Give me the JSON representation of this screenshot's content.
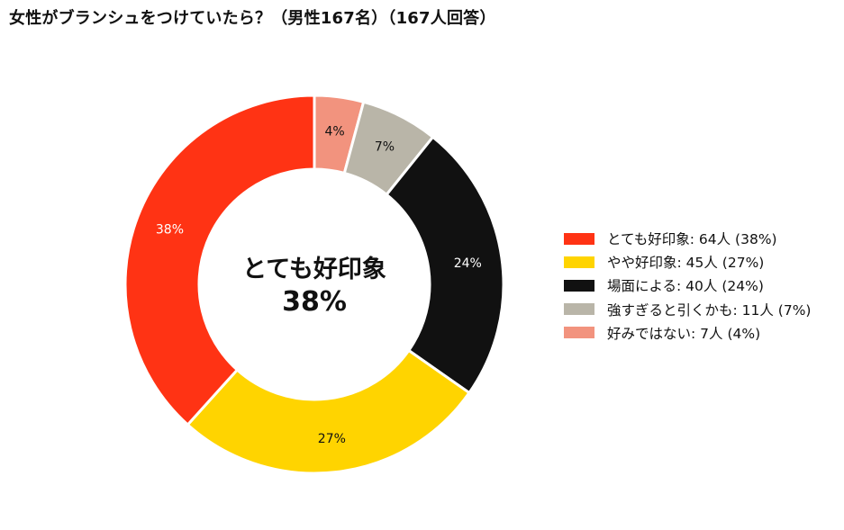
{
  "chart_data": {
    "type": "pie",
    "title": "女性がブランシュをつけていたら？（男性167名）（167人回答）",
    "center_label": {
      "line1": "とても好印象",
      "line2": "38%"
    },
    "legend_placement": "right",
    "slices": [
      {
        "label": "好みではない",
        "count": 7,
        "percent": 4,
        "percent_label": "4%",
        "legend_text": "好みではない:  7人 (4%)",
        "color": "#F2937E",
        "text_color": "#111111"
      },
      {
        "label": "強すぎると引くかも",
        "count": 11,
        "percent": 7,
        "percent_label": "7%",
        "legend_text": "強すぎると引くかも:  11人 (7%)",
        "color": "#B9B5A8",
        "text_color": "#111111"
      },
      {
        "label": "場面による",
        "count": 40,
        "percent": 24,
        "percent_label": "24%",
        "legend_text": "場面による:  40人 (24%)",
        "color": "#111111",
        "text_color": "#ffffff"
      },
      {
        "label": "やや好印象",
        "count": 45,
        "percent": 27,
        "percent_label": "27%",
        "legend_text": "やや好印象:  45人 (27%)",
        "color": "#FFD400",
        "text_color": "#111111"
      },
      {
        "label": "とても好印象",
        "count": 64,
        "percent": 38,
        "percent_label": "38%",
        "legend_text": "とても好印象:  64人 (38%)",
        "color": "#FF3314",
        "text_color": "#ffffff"
      }
    ],
    "legend_order": [
      4,
      3,
      2,
      1,
      0
    ]
  }
}
